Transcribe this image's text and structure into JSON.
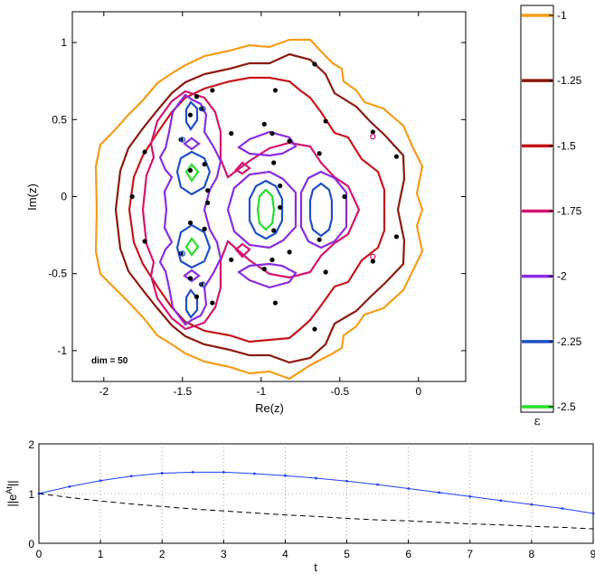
{
  "chart_data": [
    {
      "type": "contour",
      "xlabel": "Re(z)",
      "ylabel": "Im(z)",
      "xlim": [
        -2.2,
        0.3
      ],
      "ylim": [
        -1.2,
        1.2
      ],
      "x_ticks": [
        "-2",
        "-1.5",
        "-1",
        "-0.5",
        "0"
      ],
      "x_tick_values": [
        -2,
        -1.5,
        -1,
        -0.5,
        0
      ],
      "y_ticks": [
        "1",
        "0.5",
        "0",
        "-0.5",
        "-1"
      ],
      "y_tick_values": [
        1,
        0.5,
        0,
        -0.5,
        -1
      ],
      "annotation": "dim = 50",
      "grid": false,
      "colorbar": {
        "label": "ε",
        "levels": [
          -1,
          -1.25,
          -1.5,
          -1.75,
          -2,
          -2.25,
          -2.5
        ],
        "level_labels": [
          "-1",
          "-1.25",
          "-1.5",
          "-1.75",
          "-2",
          "-2.25",
          "-2.5"
        ],
        "colors": [
          "#f59c1a",
          "#8b1a10",
          "#c4161c",
          "#d4146e",
          "#8a2be2",
          "#1f4fc4",
          "#22e02a"
        ]
      },
      "eigenvalues": [
        [
          -1.82,
          0.0
        ],
        [
          -1.74,
          0.29
        ],
        [
          -1.74,
          -0.29
        ],
        [
          -1.51,
          0.37
        ],
        [
          -1.51,
          -0.37
        ],
        [
          -1.45,
          0.17
        ],
        [
          -1.45,
          -0.17
        ],
        [
          -1.45,
          0.53
        ],
        [
          -1.45,
          -0.53
        ],
        [
          -1.41,
          0.65
        ],
        [
          -1.41,
          -0.65
        ],
        [
          -1.38,
          0.57
        ],
        [
          -1.38,
          -0.57
        ],
        [
          -1.36,
          0.21
        ],
        [
          -1.36,
          -0.21
        ],
        [
          -1.34,
          0.04
        ],
        [
          -1.34,
          -0.04
        ],
        [
          -1.31,
          0.69
        ],
        [
          -1.31,
          -0.69
        ],
        [
          -1.19,
          0.41
        ],
        [
          -1.19,
          -0.41
        ],
        [
          -0.98,
          0.47
        ],
        [
          -0.98,
          -0.47
        ],
        [
          -0.93,
          0.41
        ],
        [
          -0.93,
          -0.41
        ],
        [
          -0.92,
          0.22
        ],
        [
          -0.92,
          -0.22
        ],
        [
          -0.91,
          0.69
        ],
        [
          -0.91,
          -0.69
        ],
        [
          -0.88,
          0.07
        ],
        [
          -0.88,
          -0.07
        ],
        [
          -0.82,
          0.36
        ],
        [
          -0.82,
          -0.36
        ],
        [
          -0.66,
          0.86
        ],
        [
          -0.66,
          -0.86
        ],
        [
          -0.63,
          0.28
        ],
        [
          -0.63,
          -0.28
        ],
        [
          -0.59,
          0.49
        ],
        [
          -0.59,
          -0.49
        ],
        [
          -0.47,
          0.0
        ],
        [
          -0.29,
          0.42
        ],
        [
          -0.29,
          -0.42
        ],
        [
          -0.14,
          0.26
        ],
        [
          -0.14,
          -0.26
        ]
      ],
      "open_markers": [
        {
          "re": -1.5,
          "im": 0.37,
          "level": "-2.25"
        },
        {
          "re": -1.5,
          "im": -0.37,
          "level": "-2.25"
        },
        {
          "re": -1.37,
          "im": 0.57,
          "level": "-2.25"
        },
        {
          "re": -1.37,
          "im": -0.57,
          "level": "-2.25"
        },
        {
          "re": -0.29,
          "im": 0.39,
          "level": "-1.75"
        },
        {
          "re": -0.29,
          "im": -0.39,
          "level": "-1.75"
        }
      ]
    },
    {
      "type": "line",
      "xlabel": "t",
      "ylabel": "||e^{At}||",
      "xlim": [
        0,
        9
      ],
      "ylim": [
        0,
        2
      ],
      "x_ticks": [
        "0",
        "1",
        "2",
        "3",
        "4",
        "5",
        "6",
        "7",
        "8",
        "9"
      ],
      "y_ticks": [
        "0",
        "1",
        "2"
      ],
      "grid": true,
      "x": [
        0,
        0.5,
        1,
        1.5,
        2,
        2.5,
        3,
        3.5,
        4,
        4.5,
        5,
        5.5,
        6,
        6.5,
        7,
        7.5,
        8,
        8.5,
        9
      ],
      "series": [
        {
          "style": "solid-dots",
          "color": "#1f3fff",
          "values": [
            1.0,
            1.14,
            1.26,
            1.35,
            1.41,
            1.43,
            1.43,
            1.4,
            1.36,
            1.31,
            1.25,
            1.18,
            1.1,
            1.02,
            0.94,
            0.86,
            0.78,
            0.7,
            0.6
          ]
        },
        {
          "style": "dashed",
          "color": "#000000",
          "values": [
            1.0,
            0.92,
            0.85,
            0.79,
            0.74,
            0.69,
            0.65,
            0.61,
            0.57,
            0.54,
            0.5,
            0.47,
            0.45,
            0.42,
            0.39,
            0.37,
            0.34,
            0.32,
            0.29
          ]
        }
      ]
    }
  ]
}
